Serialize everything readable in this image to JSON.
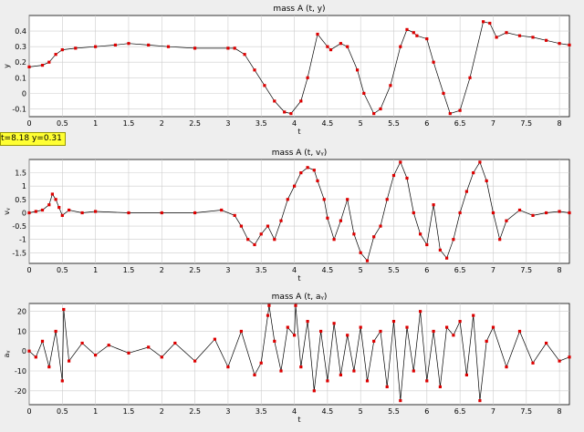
{
  "readout": "t=8.18  y=0.31",
  "colors": {
    "marker": "#dd0000",
    "line": "#000000",
    "grid": "#cccccc",
    "plot_bg": "#ffffff",
    "window_bg": "#eeeeee",
    "readout_bg": "#ffff33"
  },
  "chart_data": [
    {
      "type": "line",
      "title": "mass A (t, y)",
      "xlabel": "t",
      "ylabel": "y",
      "xlim": [
        0,
        8.15
      ],
      "ylim": [
        -0.15,
        0.5
      ],
      "xticks": [
        "0",
        "0.5",
        "1",
        "1.5",
        "2",
        "2.5",
        "3",
        "3.5",
        "4",
        "4.5",
        "5",
        "5.5",
        "6",
        "6.5",
        "7",
        "7.5",
        "8"
      ],
      "yticks": [
        "-0.1",
        "0",
        "0.1",
        "0.2",
        "0.3",
        "0.4"
      ],
      "grid": true,
      "series": [
        {
          "x": [
            0,
            0.2,
            0.3,
            0.4,
            0.5,
            0.7,
            1.0,
            1.3,
            1.5,
            1.8,
            2.1,
            2.5,
            3.0,
            3.1,
            3.25,
            3.4,
            3.55,
            3.7,
            3.85,
            3.95,
            4.1,
            4.2,
            4.35,
            4.5,
            4.55,
            4.7,
            4.8,
            4.95,
            5.05,
            5.2,
            5.3,
            5.45,
            5.6,
            5.7,
            5.8,
            5.85,
            6.0,
            6.1,
            6.25,
            6.35,
            6.5,
            6.65,
            6.85,
            6.95,
            7.05,
            7.2,
            7.4,
            7.6,
            7.8,
            8.0,
            8.15
          ],
          "y": [
            0.17,
            0.18,
            0.2,
            0.25,
            0.28,
            0.29,
            0.3,
            0.31,
            0.32,
            0.31,
            0.3,
            0.29,
            0.29,
            0.29,
            0.25,
            0.15,
            0.05,
            -0.05,
            -0.12,
            -0.13,
            -0.05,
            0.1,
            0.38,
            0.3,
            0.28,
            0.32,
            0.3,
            0.15,
            0.0,
            -0.13,
            -0.1,
            0.05,
            0.3,
            0.41,
            0.39,
            0.37,
            0.35,
            0.2,
            0.0,
            -0.13,
            -0.11,
            0.1,
            0.46,
            0.45,
            0.36,
            0.39,
            0.37,
            0.36,
            0.34,
            0.32,
            0.31
          ]
        }
      ]
    },
    {
      "type": "line",
      "title": "mass A (t, vᵧ)",
      "xlabel": "t",
      "ylabel": "vᵧ",
      "xlim": [
        0,
        8.15
      ],
      "ylim": [
        -1.9,
        2.0
      ],
      "xticks": [
        "0",
        "0.5",
        "1",
        "1.5",
        "2",
        "2.5",
        "3",
        "3.5",
        "4",
        "4.5",
        "5",
        "5.5",
        "6",
        "6.5",
        "7",
        "7.5",
        "8"
      ],
      "yticks": [
        "-1.5",
        "-1",
        "-0.5",
        "0",
        "0.5",
        "1",
        "1.5"
      ],
      "grid": true,
      "series": [
        {
          "x": [
            0,
            0.1,
            0.2,
            0.3,
            0.35,
            0.4,
            0.45,
            0.5,
            0.6,
            0.8,
            1.0,
            1.5,
            2.0,
            2.5,
            2.9,
            3.1,
            3.2,
            3.3,
            3.4,
            3.5,
            3.6,
            3.7,
            3.8,
            3.9,
            4.0,
            4.1,
            4.2,
            4.3,
            4.35,
            4.45,
            4.5,
            4.6,
            4.7,
            4.8,
            4.9,
            5.0,
            5.1,
            5.2,
            5.3,
            5.4,
            5.5,
            5.6,
            5.7,
            5.8,
            5.9,
            6.0,
            6.1,
            6.2,
            6.3,
            6.4,
            6.5,
            6.6,
            6.7,
            6.8,
            6.9,
            7.0,
            7.1,
            7.2,
            7.4,
            7.6,
            7.8,
            8.0,
            8.15
          ],
          "y": [
            0.0,
            0.05,
            0.1,
            0.3,
            0.7,
            0.5,
            0.2,
            -0.1,
            0.1,
            0.0,
            0.05,
            0.0,
            0.0,
            0.0,
            0.1,
            -0.1,
            -0.5,
            -1.0,
            -1.2,
            -0.8,
            -0.5,
            -1.0,
            -0.3,
            0.5,
            1.0,
            1.5,
            1.7,
            1.6,
            1.2,
            0.5,
            -0.2,
            -1.0,
            -0.3,
            0.5,
            -0.8,
            -1.5,
            -1.8,
            -0.9,
            -0.5,
            0.5,
            1.4,
            1.9,
            1.3,
            0.0,
            -0.8,
            -1.2,
            0.3,
            -1.4,
            -1.7,
            -1.0,
            0.0,
            0.8,
            1.5,
            1.9,
            1.2,
            0.0,
            -1.0,
            -0.3,
            0.1,
            -0.1,
            0.0,
            0.05,
            0.0
          ]
        }
      ]
    },
    {
      "type": "line",
      "title": "mass A (t, aᵧ)",
      "xlabel": "t",
      "ylabel": "aᵧ",
      "xlim": [
        0,
        8.15
      ],
      "ylim": [
        -27,
        24
      ],
      "xticks": [
        "0",
        "0.5",
        "1",
        "1.5",
        "2",
        "2.5",
        "3",
        "3.5",
        "4",
        "4.5",
        "5",
        "5.5",
        "6",
        "6.5",
        "7",
        "7.5",
        "8"
      ],
      "yticks": [
        "-20",
        "-10",
        "0",
        "10",
        "20"
      ],
      "grid": true,
      "series": [
        {
          "x": [
            0,
            0.1,
            0.2,
            0.3,
            0.4,
            0.5,
            0.52,
            0.6,
            0.8,
            1.0,
            1.2,
            1.5,
            1.8,
            2.0,
            2.2,
            2.5,
            2.8,
            3.0,
            3.2,
            3.4,
            3.5,
            3.6,
            3.62,
            3.7,
            3.8,
            3.9,
            4.0,
            4.02,
            4.1,
            4.2,
            4.3,
            4.4,
            4.5,
            4.6,
            4.7,
            4.8,
            4.9,
            5.0,
            5.1,
            5.2,
            5.3,
            5.4,
            5.5,
            5.6,
            5.7,
            5.8,
            5.9,
            6.0,
            6.1,
            6.2,
            6.3,
            6.4,
            6.5,
            6.6,
            6.7,
            6.8,
            6.9,
            7.0,
            7.2,
            7.4,
            7.6,
            7.8,
            8.0,
            8.15
          ],
          "y": [
            0,
            -3,
            5,
            -8,
            10,
            -15,
            21,
            -5,
            4,
            -2,
            3,
            -1,
            2,
            -3,
            4,
            -5,
            6,
            -8,
            10,
            -12,
            -6,
            18,
            23,
            5,
            -10,
            12,
            8,
            23,
            -8,
            15,
            -20,
            10,
            -15,
            14,
            -12,
            8,
            -10,
            12,
            -15,
            5,
            10,
            -18,
            15,
            -25,
            12,
            -10,
            20,
            -15,
            10,
            -18,
            12,
            8,
            15,
            -12,
            18,
            -25,
            5,
            12,
            -8,
            10,
            -6,
            4,
            -5,
            -3
          ]
        }
      ]
    }
  ]
}
